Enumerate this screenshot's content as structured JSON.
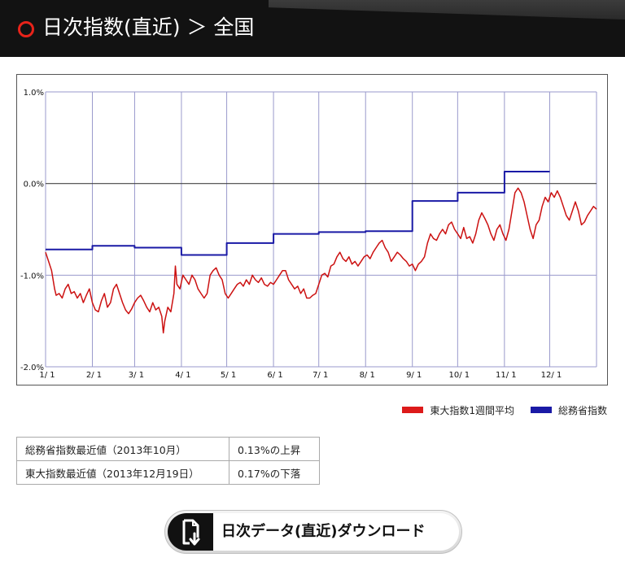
{
  "header": {
    "title": "日次指数(直近) ＞ 全国"
  },
  "colors": {
    "accent": "#e8231a",
    "todai": "#cc1111",
    "soumu": "#1a1aa6"
  },
  "chart_data": {
    "type": "line",
    "x_tick_labels": [
      "1/ 1",
      "2/ 1",
      "3/ 1",
      "4/ 1",
      "5/ 1",
      "6/ 1",
      "7/ 1",
      "8/ 1",
      "9/ 1",
      "10/ 1",
      "11/ 1",
      "12/ 1"
    ],
    "y_tick_labels": [
      "1.0%",
      "0.0%",
      "-1.0%",
      "-2.0%"
    ],
    "ylim": [
      -2.0,
      1.0
    ],
    "xlim": [
      0,
      365
    ],
    "grid": true,
    "legend_position": "bottom-right",
    "series": [
      {
        "name": "東大指数1週間平均",
        "color": "#cc1111",
        "points": [
          [
            0,
            -0.75
          ],
          [
            2,
            -0.85
          ],
          [
            4,
            -0.95
          ],
          [
            6,
            -1.15
          ],
          [
            7,
            -1.22
          ],
          [
            9,
            -1.2
          ],
          [
            11,
            -1.25
          ],
          [
            13,
            -1.15
          ],
          [
            15,
            -1.1
          ],
          [
            17,
            -1.2
          ],
          [
            19,
            -1.18
          ],
          [
            21,
            -1.25
          ],
          [
            23,
            -1.2
          ],
          [
            25,
            -1.3
          ],
          [
            27,
            -1.22
          ],
          [
            29,
            -1.15
          ],
          [
            31,
            -1.3
          ],
          [
            33,
            -1.38
          ],
          [
            35,
            -1.4
          ],
          [
            37,
            -1.28
          ],
          [
            39,
            -1.2
          ],
          [
            41,
            -1.35
          ],
          [
            43,
            -1.3
          ],
          [
            45,
            -1.15
          ],
          [
            47,
            -1.1
          ],
          [
            49,
            -1.2
          ],
          [
            51,
            -1.3
          ],
          [
            53,
            -1.38
          ],
          [
            55,
            -1.42
          ],
          [
            57,
            -1.37
          ],
          [
            59,
            -1.3
          ],
          [
            61,
            -1.25
          ],
          [
            63,
            -1.22
          ],
          [
            65,
            -1.28
          ],
          [
            67,
            -1.35
          ],
          [
            69,
            -1.4
          ],
          [
            71,
            -1.3
          ],
          [
            73,
            -1.38
          ],
          [
            75,
            -1.35
          ],
          [
            77,
            -1.45
          ],
          [
            78,
            -1.63
          ],
          [
            79,
            -1.5
          ],
          [
            81,
            -1.35
          ],
          [
            83,
            -1.4
          ],
          [
            85,
            -1.2
          ],
          [
            86,
            -0.9
          ],
          [
            87,
            -1.1
          ],
          [
            89,
            -1.15
          ],
          [
            91,
            -1.0
          ],
          [
            93,
            -1.05
          ],
          [
            95,
            -1.1
          ],
          [
            97,
            -1.0
          ],
          [
            99,
            -1.05
          ],
          [
            101,
            -1.15
          ],
          [
            103,
            -1.2
          ],
          [
            105,
            -1.25
          ],
          [
            107,
            -1.2
          ],
          [
            109,
            -1.0
          ],
          [
            111,
            -0.95
          ],
          [
            113,
            -0.92
          ],
          [
            115,
            -1.0
          ],
          [
            117,
            -1.05
          ],
          [
            119,
            -1.2
          ],
          [
            121,
            -1.25
          ],
          [
            123,
            -1.2
          ],
          [
            125,
            -1.15
          ],
          [
            127,
            -1.1
          ],
          [
            129,
            -1.08
          ],
          [
            131,
            -1.12
          ],
          [
            133,
            -1.05
          ],
          [
            135,
            -1.1
          ],
          [
            137,
            -1.0
          ],
          [
            139,
            -1.05
          ],
          [
            141,
            -1.08
          ],
          [
            143,
            -1.03
          ],
          [
            145,
            -1.1
          ],
          [
            147,
            -1.12
          ],
          [
            149,
            -1.08
          ],
          [
            151,
            -1.1
          ],
          [
            153,
            -1.05
          ],
          [
            155,
            -1.0
          ],
          [
            157,
            -0.95
          ],
          [
            159,
            -0.95
          ],
          [
            161,
            -1.05
          ],
          [
            163,
            -1.1
          ],
          [
            165,
            -1.15
          ],
          [
            167,
            -1.12
          ],
          [
            169,
            -1.2
          ],
          [
            171,
            -1.15
          ],
          [
            173,
            -1.25
          ],
          [
            175,
            -1.25
          ],
          [
            177,
            -1.22
          ],
          [
            179,
            -1.2
          ],
          [
            181,
            -1.1
          ],
          [
            183,
            -1.0
          ],
          [
            185,
            -0.98
          ],
          [
            187,
            -1.02
          ],
          [
            189,
            -0.9
          ],
          [
            191,
            -0.88
          ],
          [
            193,
            -0.8
          ],
          [
            195,
            -0.75
          ],
          [
            197,
            -0.82
          ],
          [
            199,
            -0.85
          ],
          [
            201,
            -0.8
          ],
          [
            203,
            -0.88
          ],
          [
            205,
            -0.85
          ],
          [
            207,
            -0.9
          ],
          [
            209,
            -0.85
          ],
          [
            211,
            -0.8
          ],
          [
            213,
            -0.78
          ],
          [
            215,
            -0.82
          ],
          [
            217,
            -0.75
          ],
          [
            219,
            -0.7
          ],
          [
            221,
            -0.65
          ],
          [
            223,
            -0.62
          ],
          [
            225,
            -0.7
          ],
          [
            227,
            -0.75
          ],
          [
            229,
            -0.85
          ],
          [
            231,
            -0.8
          ],
          [
            233,
            -0.75
          ],
          [
            235,
            -0.78
          ],
          [
            237,
            -0.82
          ],
          [
            239,
            -0.85
          ],
          [
            241,
            -0.9
          ],
          [
            243,
            -0.88
          ],
          [
            245,
            -0.95
          ],
          [
            247,
            -0.88
          ],
          [
            249,
            -0.85
          ],
          [
            251,
            -0.8
          ],
          [
            253,
            -0.65
          ],
          [
            255,
            -0.55
          ],
          [
            257,
            -0.6
          ],
          [
            259,
            -0.62
          ],
          [
            261,
            -0.55
          ],
          [
            263,
            -0.5
          ],
          [
            265,
            -0.55
          ],
          [
            267,
            -0.45
          ],
          [
            269,
            -0.42
          ],
          [
            271,
            -0.5
          ],
          [
            273,
            -0.55
          ],
          [
            275,
            -0.6
          ],
          [
            277,
            -0.48
          ],
          [
            279,
            -0.6
          ],
          [
            281,
            -0.58
          ],
          [
            283,
            -0.65
          ],
          [
            285,
            -0.55
          ],
          [
            287,
            -0.4
          ],
          [
            289,
            -0.32
          ],
          [
            291,
            -0.38
          ],
          [
            293,
            -0.45
          ],
          [
            295,
            -0.55
          ],
          [
            297,
            -0.62
          ],
          [
            299,
            -0.5
          ],
          [
            301,
            -0.45
          ],
          [
            303,
            -0.55
          ],
          [
            305,
            -0.62
          ],
          [
            307,
            -0.5
          ],
          [
            309,
            -0.3
          ],
          [
            311,
            -0.1
          ],
          [
            313,
            -0.05
          ],
          [
            315,
            -0.1
          ],
          [
            317,
            -0.2
          ],
          [
            319,
            -0.35
          ],
          [
            321,
            -0.5
          ],
          [
            323,
            -0.6
          ],
          [
            325,
            -0.45
          ],
          [
            327,
            -0.4
          ],
          [
            329,
            -0.25
          ],
          [
            331,
            -0.15
          ],
          [
            333,
            -0.2
          ],
          [
            335,
            -0.1
          ],
          [
            337,
            -0.15
          ],
          [
            339,
            -0.08
          ],
          [
            341,
            -0.15
          ],
          [
            343,
            -0.25
          ],
          [
            345,
            -0.35
          ],
          [
            347,
            -0.4
          ],
          [
            349,
            -0.3
          ],
          [
            351,
            -0.2
          ],
          [
            353,
            -0.3
          ],
          [
            355,
            -0.45
          ],
          [
            357,
            -0.42
          ],
          [
            359,
            -0.35
          ],
          [
            361,
            -0.3
          ],
          [
            363,
            -0.25
          ],
          [
            365,
            -0.28
          ]
        ]
      },
      {
        "name": "総務省指数",
        "color": "#1a1aa6",
        "points": [
          [
            0,
            -0.72
          ],
          [
            31,
            -0.72
          ],
          [
            31,
            -0.68
          ],
          [
            59,
            -0.68
          ],
          [
            59,
            -0.7
          ],
          [
            90,
            -0.7
          ],
          [
            90,
            -0.78
          ],
          [
            120,
            -0.78
          ],
          [
            120,
            -0.65
          ],
          [
            151,
            -0.65
          ],
          [
            151,
            -0.55
          ],
          [
            181,
            -0.55
          ],
          [
            181,
            -0.53
          ],
          [
            212,
            -0.53
          ],
          [
            212,
            -0.52
          ],
          [
            243,
            -0.52
          ],
          [
            243,
            -0.19
          ],
          [
            273,
            -0.19
          ],
          [
            273,
            -0.1
          ],
          [
            304,
            -0.1
          ],
          [
            304,
            0.13
          ],
          [
            334,
            0.13
          ]
        ]
      }
    ]
  },
  "legend": {
    "todai": "東大指数1週間平均",
    "soumu": "総務省指数"
  },
  "summary": [
    {
      "label": "総務省指数最近値（2013年10月）",
      "value": "0.13%の上昇"
    },
    {
      "label": "東大指数最近値（2013年12月19日）",
      "value": "0.17%の下落"
    }
  ],
  "download": {
    "label": "日次データ(直近)ダウンロード",
    "icon": "download-file-icon"
  }
}
